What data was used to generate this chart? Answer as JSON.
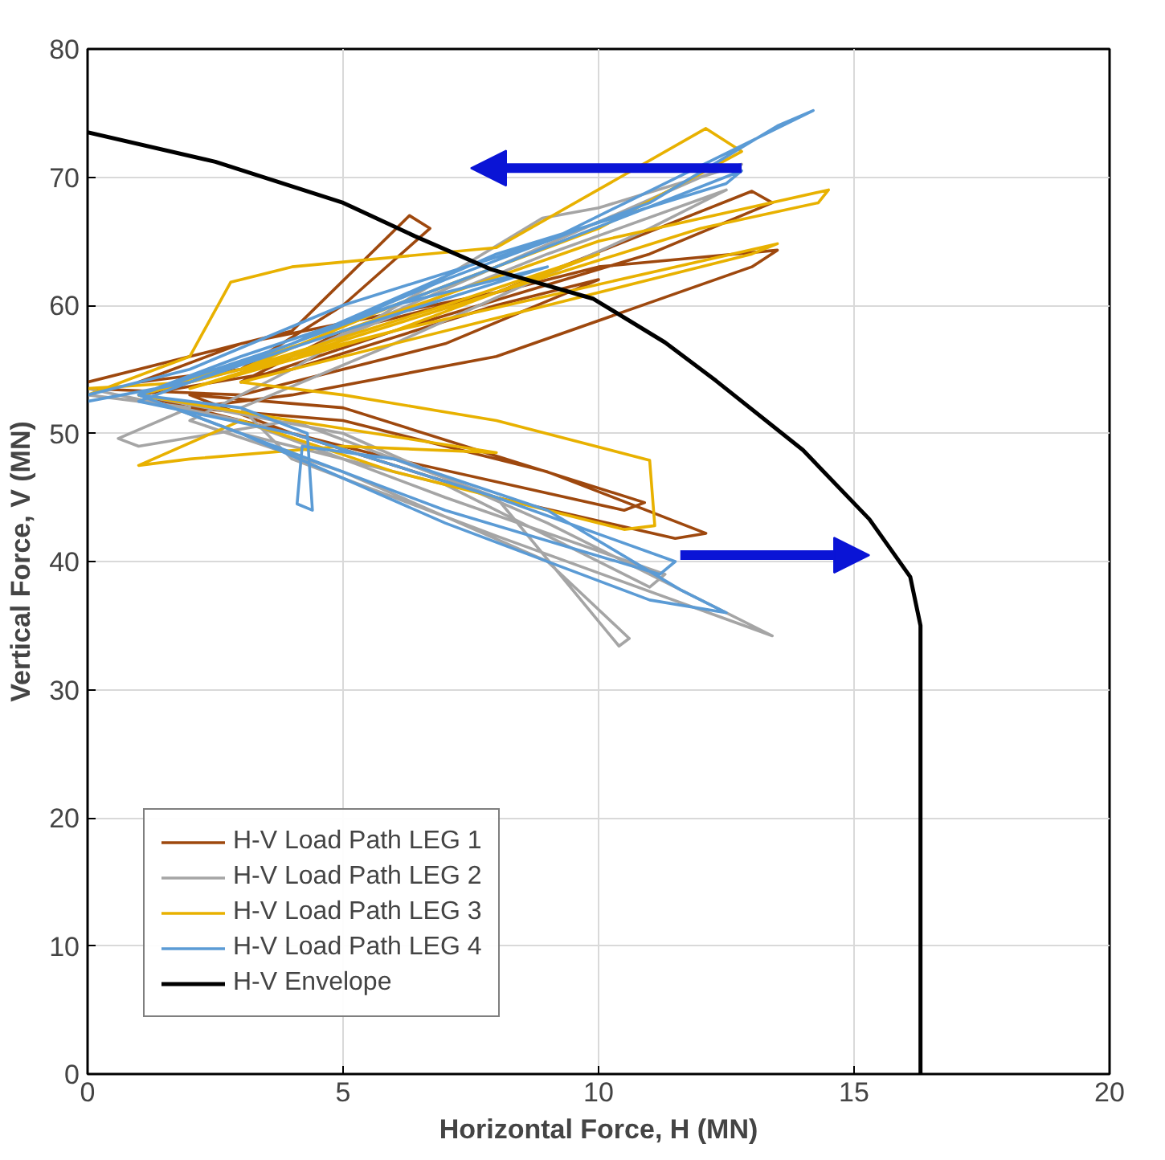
{
  "chart_data": {
    "type": "line",
    "xlabel": "Horizontal Force, H (MN)",
    "ylabel": "Vertical Force, V (MN)",
    "xlim": [
      0,
      20
    ],
    "ylim": [
      0,
      80
    ],
    "xticks": [
      0,
      5,
      10,
      15,
      20
    ],
    "yticks": [
      0,
      10,
      20,
      30,
      40,
      50,
      60,
      70,
      80
    ],
    "grid": true,
    "legend": "bottom left",
    "marker": "none",
    "line_style": "solid",
    "series": [
      {
        "name": "H-V Load Path LEG 1",
        "color": "#9e480e",
        "x": [
          0,
          2,
          4,
          6.3,
          6.7,
          5,
          3,
          1,
          3,
          8,
          13,
          13.4,
          11,
          6,
          3,
          5,
          10,
          13.5,
          13,
          8,
          4,
          2,
          5,
          9,
          12.1,
          11.5,
          8,
          4,
          2,
          5,
          10.9,
          10.5,
          6,
          3,
          1,
          4,
          8,
          10,
          7,
          3,
          0
        ],
        "values": [
          54,
          56,
          58,
          67,
          66,
          60,
          55,
          54,
          57,
          61,
          68.9,
          68,
          64,
          58,
          54,
          58,
          63,
          64.3,
          63,
          56,
          53,
          52,
          51,
          47,
          42.2,
          41.8,
          45,
          50,
          53,
          52,
          44.6,
          44,
          48,
          51,
          53,
          55,
          60,
          62,
          57,
          53,
          53.5
        ]
      },
      {
        "name": "H-V Load Path LEG 2",
        "color": "#a5a5a5",
        "x": [
          0,
          2,
          0.6,
          1,
          4,
          8,
          10.4,
          10.6,
          9,
          5,
          2,
          4,
          8.9,
          10,
          12.8,
          12,
          8,
          4,
          1,
          5,
          9,
          13.4,
          12.5,
          8,
          4,
          3,
          6,
          11,
          12.5,
          9,
          4,
          1,
          3,
          7,
          11,
          11.3,
          7,
          3,
          0
        ],
        "values": [
          53,
          52,
          49.6,
          49,
          51,
          45,
          33.4,
          34,
          40,
          47,
          51,
          55,
          66.8,
          67.6,
          71,
          70,
          63,
          56,
          53,
          50,
          43,
          34.2,
          35.5,
          42,
          48,
          52,
          57,
          66,
          69,
          64,
          56,
          53,
          50,
          46,
          38,
          39,
          45,
          51,
          53.5
        ]
      },
      {
        "name": "H-V Load Path LEG 3",
        "color": "#e8b100",
        "x": [
          0,
          2,
          2.8,
          4,
          8,
          12.1,
          12.8,
          10,
          6,
          3,
          1,
          5,
          10,
          14.5,
          14.3,
          12,
          8,
          4,
          2,
          6,
          13.5,
          13,
          8,
          3,
          5,
          8,
          11,
          11.1,
          10.5,
          6,
          3,
          1,
          2,
          5,
          8,
          4,
          1,
          3,
          7,
          10,
          6,
          2,
          0
        ],
        "values": [
          53,
          56,
          61.8,
          63,
          64.5,
          73.8,
          72,
          66,
          60,
          55,
          53,
          58,
          65,
          69,
          68,
          66,
          61,
          56,
          53.5,
          58,
          64.8,
          64,
          59,
          54,
          53,
          51,
          47.9,
          42.8,
          42.5,
          47,
          51,
          47.5,
          48,
          49,
          48.5,
          51,
          53,
          55,
          60,
          64,
          58,
          54,
          53.5
        ]
      },
      {
        "name": "H-V Load Path LEG 4",
        "color": "#5b9bd5",
        "x": [
          0,
          2,
          5,
          9,
          14.2,
          13.5,
          11,
          7,
          4,
          1,
          3,
          4.3,
          4.4,
          4.1,
          4.2,
          6,
          9,
          11.6,
          12.5,
          11,
          7,
          3,
          1,
          4,
          8,
          12.8,
          12.5,
          8,
          4,
          1,
          4,
          8,
          11.5,
          11.2,
          7,
          3,
          1,
          3,
          6,
          9,
          5,
          2,
          0
        ],
        "values": [
          53,
          55,
          60,
          65,
          75.2,
          74,
          68,
          62,
          57,
          53,
          52,
          50,
          44,
          44.5,
          49,
          48,
          44,
          37.8,
          36,
          37,
          43,
          50,
          53,
          57,
          63,
          70.5,
          69.5,
          64,
          57,
          52.5,
          50,
          45,
          40,
          39,
          44,
          50,
          53,
          56,
          60,
          63,
          58,
          54,
          52.5
        ]
      },
      {
        "name": "H-V Envelope",
        "color": "#000000",
        "x": [
          0,
          2.5,
          5,
          6.4,
          7.9,
          9.9,
          11.3,
          12.3,
          14,
          15.3,
          16.1,
          16.3,
          16.3
        ],
        "values": [
          73.5,
          71.2,
          68,
          65.4,
          62.8,
          60.5,
          57.1,
          54.1,
          48.7,
          43.3,
          38.8,
          35,
          0
        ]
      }
    ]
  }
}
